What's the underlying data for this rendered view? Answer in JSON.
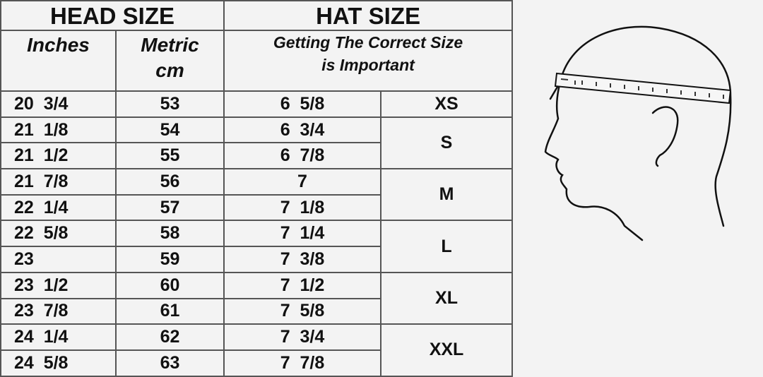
{
  "header": {
    "head_size": "HEAD SIZE",
    "hat_size": "HAT SIZE",
    "inches": "Inches",
    "metric_1": "Metric",
    "metric_2": "cm",
    "subtitle_1": "Getting The Correct Size",
    "subtitle_2": "is Important"
  },
  "rows": [
    {
      "inches": "20  3/4",
      "cm": "53",
      "hat": "6  5/8"
    },
    {
      "inches": "21  1/8",
      "cm": "54",
      "hat": "6  3/4"
    },
    {
      "inches": "21  1/2",
      "cm": "55",
      "hat": "6  7/8"
    },
    {
      "inches": "21  7/8",
      "cm": "56",
      "hat": "7"
    },
    {
      "inches": "22  1/4",
      "cm": "57",
      "hat": "7  1/8"
    },
    {
      "inches": "22  5/8",
      "cm": "58",
      "hat": "7  1/4"
    },
    {
      "inches": "23",
      "cm": "59",
      "hat": "7  3/8"
    },
    {
      "inches": "23  1/2",
      "cm": "60",
      "hat": "7  1/2"
    },
    {
      "inches": "23  7/8",
      "cm": "61",
      "hat": "7  5/8"
    },
    {
      "inches": "24  1/4",
      "cm": "62",
      "hat": "7  3/4"
    },
    {
      "inches": "24  5/8",
      "cm": "63",
      "hat": "7  7/8"
    }
  ],
  "letter_sizes": [
    "XS",
    "S",
    "M",
    "L",
    "XL",
    "XXL"
  ],
  "illustration": "head-profile-with-measuring-tape"
}
